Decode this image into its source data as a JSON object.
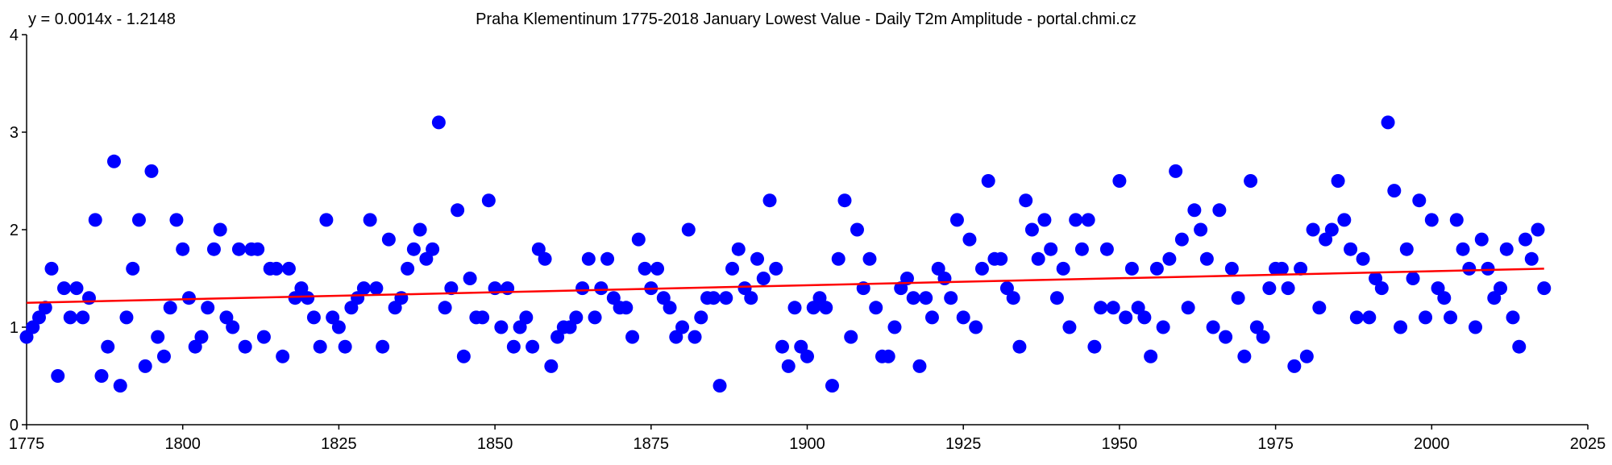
{
  "chart_data": {
    "type": "scatter",
    "title": "Praha Klementinum 1775-2018 January Lowest Value - Daily T2m Amplitude - portal.chmi.cz",
    "equation": "y = 0.0014x - 1.2148",
    "xlabel": "",
    "ylabel": "",
    "xlim": [
      1775,
      2025
    ],
    "ylim": [
      0,
      4
    ],
    "x_ticks": [
      1775,
      1800,
      1825,
      1850,
      1875,
      1900,
      1925,
      1950,
      1975,
      2000,
      2025
    ],
    "y_ticks": [
      0,
      1,
      2,
      3,
      4
    ],
    "grid": false,
    "trendline": {
      "slope": 0.0014,
      "intercept": -1.2148,
      "x_start": 1775,
      "x_end": 2018,
      "y_start": 1.25,
      "y_end": 1.6
    },
    "colors": {
      "points": "#0000ff",
      "trendline": "#ff0000",
      "axis": "#000000"
    },
    "series": [
      {
        "name": "January lowest daily T2m amplitude",
        "x": [
          1775,
          1776,
          1777,
          1778,
          1779,
          1780,
          1781,
          1782,
          1783,
          1784,
          1785,
          1786,
          1787,
          1788,
          1789,
          1790,
          1791,
          1792,
          1793,
          1794,
          1795,
          1796,
          1797,
          1798,
          1799,
          1800,
          1801,
          1802,
          1803,
          1804,
          1805,
          1806,
          1807,
          1808,
          1809,
          1810,
          1811,
          1812,
          1813,
          1814,
          1815,
          1816,
          1817,
          1818,
          1819,
          1820,
          1821,
          1822,
          1823,
          1824,
          1825,
          1826,
          1827,
          1828,
          1829,
          1830,
          1831,
          1832,
          1833,
          1834,
          1835,
          1836,
          1837,
          1838,
          1839,
          1840,
          1841,
          1842,
          1843,
          1844,
          1845,
          1846,
          1847,
          1848,
          1849,
          1850,
          1851,
          1852,
          1853,
          1854,
          1855,
          1856,
          1857,
          1858,
          1859,
          1860,
          1861,
          1862,
          1863,
          1864,
          1865,
          1866,
          1867,
          1868,
          1869,
          1870,
          1871,
          1872,
          1873,
          1874,
          1875,
          1876,
          1877,
          1878,
          1879,
          1880,
          1881,
          1882,
          1883,
          1884,
          1885,
          1886,
          1887,
          1888,
          1889,
          1890,
          1891,
          1892,
          1893,
          1894,
          1895,
          1896,
          1897,
          1898,
          1899,
          1900,
          1901,
          1902,
          1903,
          1904,
          1905,
          1906,
          1907,
          1908,
          1909,
          1910,
          1911,
          1912,
          1913,
          1914,
          1915,
          1916,
          1917,
          1918,
          1919,
          1920,
          1921,
          1922,
          1923,
          1924,
          1925,
          1926,
          1927,
          1928,
          1929,
          1930,
          1931,
          1932,
          1933,
          1934,
          1935,
          1936,
          1937,
          1938,
          1939,
          1940,
          1941,
          1942,
          1943,
          1944,
          1945,
          1946,
          1947,
          1948,
          1949,
          1950,
          1951,
          1952,
          1953,
          1954,
          1955,
          1956,
          1957,
          1958,
          1959,
          1960,
          1961,
          1962,
          1963,
          1964,
          1965,
          1966,
          1967,
          1968,
          1969,
          1970,
          1971,
          1972,
          1973,
          1974,
          1975,
          1976,
          1977,
          1978,
          1979,
          1980,
          1981,
          1982,
          1983,
          1984,
          1985,
          1986,
          1987,
          1988,
          1989,
          1990,
          1991,
          1992,
          1993,
          1994,
          1995,
          1996,
          1997,
          1998,
          1999,
          2000,
          2001,
          2002,
          2003,
          2004,
          2005,
          2006,
          2007,
          2008,
          2009,
          2010,
          2011,
          2012,
          2013,
          2014,
          2015,
          2016,
          2017,
          2018
        ],
        "y": [
          0.9,
          1.0,
          1.1,
          1.2,
          1.6,
          0.5,
          1.4,
          1.1,
          1.4,
          1.1,
          1.3,
          2.1,
          0.5,
          0.8,
          2.7,
          0.4,
          1.1,
          1.6,
          2.1,
          0.6,
          2.6,
          0.9,
          0.7,
          1.2,
          2.1,
          1.8,
          1.3,
          0.8,
          0.9,
          1.2,
          1.8,
          2.0,
          1.1,
          1.0,
          1.8,
          0.8,
          1.8,
          1.8,
          0.9,
          1.6,
          1.6,
          0.7,
          1.6,
          1.3,
          1.4,
          1.3,
          1.1,
          0.8,
          2.1,
          1.1,
          1.0,
          0.8,
          1.2,
          1.3,
          1.4,
          2.1,
          1.4,
          0.8,
          1.9,
          1.2,
          1.3,
          1.6,
          1.8,
          2.0,
          1.7,
          1.8,
          3.1,
          1.2,
          1.4,
          2.2,
          0.7,
          1.5,
          1.1,
          1.1,
          2.3,
          1.4,
          1.0,
          1.4,
          0.8,
          1.0,
          1.1,
          0.8,
          1.8,
          1.7,
          0.6,
          0.9,
          1.0,
          1.0,
          1.1,
          1.4,
          1.7,
          1.1,
          1.4,
          1.7,
          1.3,
          1.2,
          1.2,
          0.9,
          1.9,
          1.6,
          1.4,
          1.6,
          1.3,
          1.2,
          0.9,
          1.0,
          2.0,
          0.9,
          1.1,
          1.3,
          1.3,
          0.4,
          1.3,
          1.6,
          1.8,
          1.4,
          1.3,
          1.7,
          1.5,
          2.3,
          1.6,
          0.8,
          0.6,
          1.2,
          0.8,
          0.7,
          1.2,
          1.3,
          1.2,
          0.4,
          1.7,
          2.3,
          0.9,
          2.0,
          1.4,
          1.7,
          1.2,
          0.7,
          0.7,
          1.0,
          1.4,
          1.5,
          1.3,
          0.6,
          1.3,
          1.1,
          1.6,
          1.5,
          1.3,
          2.1,
          1.1,
          1.9,
          1.0,
          1.6,
          2.5,
          1.7,
          1.7,
          1.4,
          1.3,
          0.8,
          2.3,
          2.0,
          1.7,
          2.1,
          1.8,
          1.3,
          1.6,
          1.0,
          2.1,
          1.8,
          2.1,
          0.8,
          1.2,
          1.8,
          1.2,
          2.5,
          1.1,
          1.6,
          1.2,
          1.1,
          0.7,
          1.6,
          1.0,
          1.7,
          2.6,
          1.9,
          1.2,
          2.2,
          2.0,
          1.7,
          1.0,
          2.2,
          0.9,
          1.6,
          1.3,
          0.7,
          2.5,
          1.0,
          0.9,
          1.4,
          1.6,
          1.6,
          1.4,
          0.6,
          1.6,
          0.7,
          2.0,
          1.2,
          1.9,
          2.0,
          2.5,
          2.1,
          1.8,
          1.1,
          1.7,
          1.1,
          1.5,
          1.4,
          3.1,
          2.4,
          1.0,
          1.8,
          1.5,
          2.3,
          1.1,
          2.1,
          1.4,
          1.3,
          1.1,
          2.1,
          1.8,
          1.6,
          1.0,
          1.9,
          1.6,
          1.3,
          1.4,
          1.8,
          1.1,
          0.8,
          1.9,
          1.7,
          2.0,
          1.4
        ]
      }
    ]
  }
}
